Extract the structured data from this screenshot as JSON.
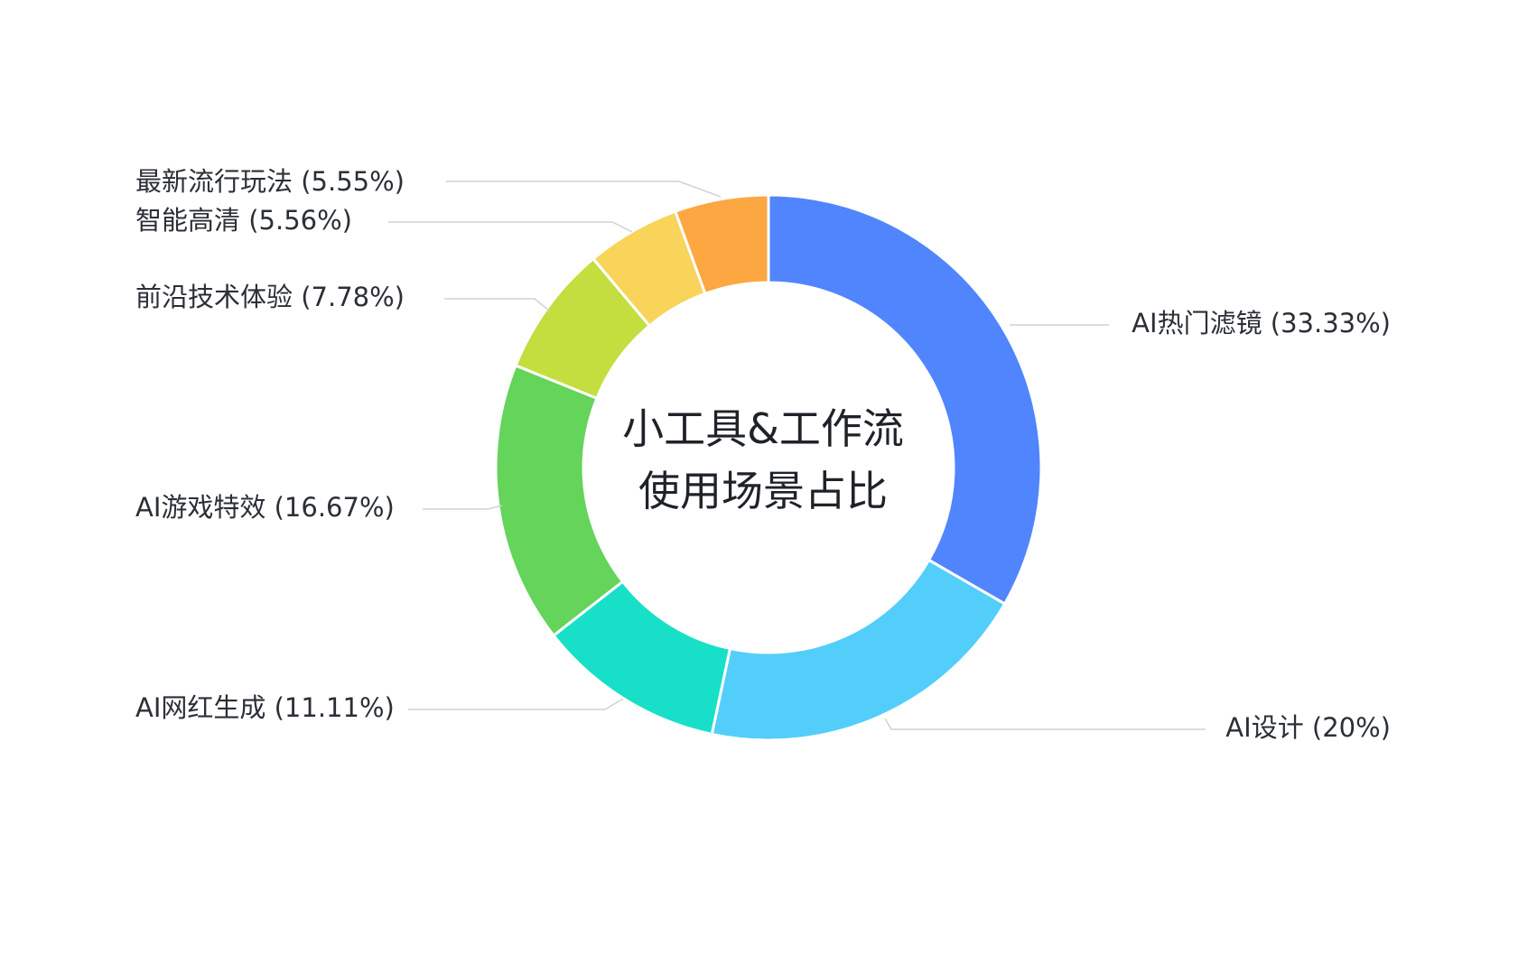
{
  "chart_data": {
    "type": "pie",
    "variant": "donut",
    "center_title": [
      "小工具&工作流",
      "使用场景占比"
    ],
    "slices": [
      {
        "name": "AI热门滤镜",
        "value": 33.33,
        "label": "AI热门滤镜 (33.33%)",
        "color": "#5085fd"
      },
      {
        "name": "AI设计",
        "value": 20,
        "label": "AI设计 (20%)",
        "color": "#53cefa"
      },
      {
        "name": "AI网红生成",
        "value": 11.11,
        "label": "AI网红生成 (11.11%)",
        "color": "#18e0c8"
      },
      {
        "name": "AI游戏特效",
        "value": 16.67,
        "label": "AI游戏特效 (16.67%)",
        "color": "#64d45a"
      },
      {
        "name": "前沿技术体验",
        "value": 7.78,
        "label": "前沿技术体验 (7.78%)",
        "color": "#c3de3e"
      },
      {
        "name": "智能高清",
        "value": 5.56,
        "label": "智能高清 (5.56%)",
        "color": "#f8d45b"
      },
      {
        "name": "最新流行玩法",
        "value": 5.55,
        "label": "最新流行玩法 (5.55%)",
        "color": "#fca742"
      }
    ],
    "legend": "none",
    "start_angle": "top",
    "direction": "clockwise"
  }
}
